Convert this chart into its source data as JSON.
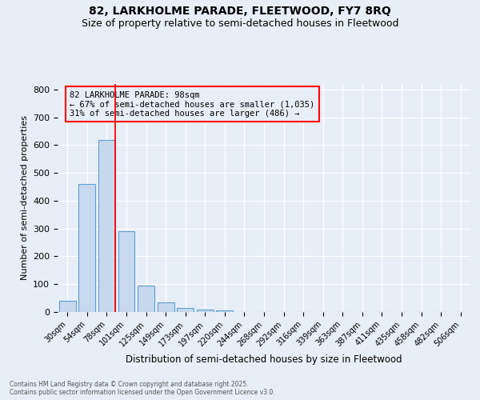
{
  "title": "82, LARKHOLME PARADE, FLEETWOOD, FY7 8RQ",
  "subtitle": "Size of property relative to semi-detached houses in Fleetwood",
  "xlabel": "Distribution of semi-detached houses by size in Fleetwood",
  "ylabel": "Number of semi-detached properties",
  "categories": [
    "30sqm",
    "54sqm",
    "78sqm",
    "101sqm",
    "125sqm",
    "149sqm",
    "173sqm",
    "197sqm",
    "220sqm",
    "244sqm",
    "268sqm",
    "292sqm",
    "316sqm",
    "339sqm",
    "363sqm",
    "387sqm",
    "411sqm",
    "435sqm",
    "458sqm",
    "482sqm",
    "506sqm"
  ],
  "values": [
    40,
    460,
    620,
    290,
    95,
    35,
    15,
    10,
    5,
    0,
    0,
    0,
    0,
    0,
    0,
    0,
    0,
    0,
    0,
    0,
    0
  ],
  "bar_color": "#c8d9ef",
  "bar_edge_color": "#5a9fd4",
  "vline_color": "red",
  "vline_x": 2.45,
  "annotation_title": "82 LARKHOLME PARADE: 98sqm",
  "annotation_line1": "← 67% of semi-detached houses are smaller (1,035)",
  "annotation_line2": "31% of semi-detached houses are larger (486) →",
  "ylim": [
    0,
    820
  ],
  "yticks": [
    0,
    100,
    200,
    300,
    400,
    500,
    600,
    700,
    800
  ],
  "footer_line1": "Contains HM Land Registry data © Crown copyright and database right 2025.",
  "footer_line2": "Contains public sector information licensed under the Open Government Licence v3.0.",
  "bg_color": "#e8eef8",
  "grid_color": "#ffffff",
  "title_fontsize": 10,
  "subtitle_fontsize": 9,
  "annot_fontsize": 7.5
}
